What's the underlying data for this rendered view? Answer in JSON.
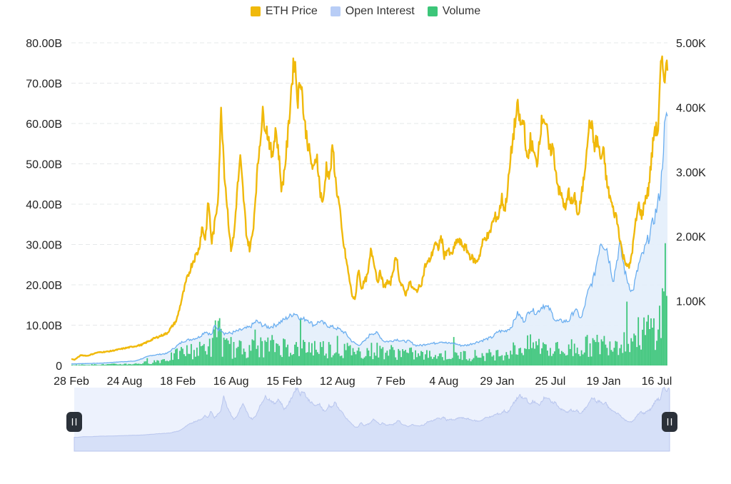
{
  "legend": [
    {
      "label": "ETH Price",
      "color": "#f0b90b"
    },
    {
      "label": "Open Interest",
      "color": "#b8cdf6"
    },
    {
      "label": "Volume",
      "color": "#3cc679"
    }
  ],
  "colors": {
    "price": "#f0b90b",
    "oi_line": "#6aaef0",
    "oi_fill": "#e3eefb",
    "volume": "#3cc679",
    "navigator_fill": "#d6e0f8",
    "navigator_bg": "#edf2fd",
    "handle": "#2b3139"
  },
  "chart_data": {
    "type": "line",
    "x_labels": [
      "28 Feb",
      "24 Aug",
      "18 Feb",
      "16 Aug",
      "15 Feb",
      "12 Aug",
      "7 Feb",
      "4 Aug",
      "29 Jan",
      "25 Jul",
      "19 Jan",
      "16 Jul"
    ],
    "left_axis": {
      "ticks": [
        "0",
        "10.00B",
        "20.00B",
        "30.00B",
        "40.00B",
        "50.00B",
        "60.00B",
        "70.00B",
        "80.00B"
      ],
      "ylim": [
        0,
        80
      ]
    },
    "right_axis": {
      "ticks": [
        "1.00K",
        "2.00K",
        "3.00K",
        "4.00K",
        "5.00K"
      ],
      "ylim": [
        0,
        5000
      ]
    },
    "grid": true,
    "legend_position": "top-center",
    "series": [
      {
        "name": "ETH Price",
        "axis": "right",
        "points": [
          [
            0,
            100
          ],
          [
            1,
            90
          ],
          [
            3,
            160
          ],
          [
            5,
            150
          ],
          [
            8,
            200
          ],
          [
            12,
            220
          ],
          [
            17,
            270
          ],
          [
            22,
            320
          ],
          [
            26,
            420
          ],
          [
            30,
            500
          ],
          [
            33,
            700
          ],
          [
            36,
            1300
          ],
          [
            38,
            1600
          ],
          [
            40,
            1800
          ],
          [
            41,
            2150
          ],
          [
            42,
            1950
          ],
          [
            43,
            2550
          ],
          [
            44,
            1900
          ],
          [
            45,
            2200
          ],
          [
            46,
            2600
          ],
          [
            47,
            4000
          ],
          [
            48,
            3000
          ],
          [
            49,
            2400
          ],
          [
            50,
            1800
          ],
          [
            51,
            2000
          ],
          [
            52,
            2700
          ],
          [
            53,
            3200
          ],
          [
            54,
            2600
          ],
          [
            55,
            2000
          ],
          [
            56,
            1800
          ],
          [
            57,
            2100
          ],
          [
            58,
            2800
          ],
          [
            59,
            3400
          ],
          [
            60,
            3900
          ],
          [
            62,
            3500
          ],
          [
            63,
            3200
          ],
          [
            64,
            3700
          ],
          [
            65,
            3300
          ],
          [
            66,
            2700
          ],
          [
            67,
            3100
          ],
          [
            68,
            3600
          ],
          [
            69,
            4300
          ],
          [
            70,
            4800
          ],
          [
            71,
            4100
          ],
          [
            72,
            4500
          ],
          [
            73,
            3800
          ],
          [
            74,
            3500
          ],
          [
            75,
            3200
          ],
          [
            76,
            3000
          ],
          [
            77,
            3300
          ],
          [
            78,
            2700
          ],
          [
            79,
            2500
          ],
          [
            80,
            3100
          ],
          [
            81,
            2900
          ],
          [
            82,
            3400
          ],
          [
            83,
            2800
          ],
          [
            84,
            2500
          ],
          [
            85,
            2000
          ],
          [
            86,
            1700
          ],
          [
            87,
            1400
          ],
          [
            88,
            1100
          ],
          [
            89,
            1000
          ],
          [
            90,
            1500
          ],
          [
            91,
            1200
          ],
          [
            92,
            1300
          ],
          [
            93,
            1400
          ],
          [
            94,
            1800
          ],
          [
            95,
            1600
          ],
          [
            96,
            1300
          ],
          [
            97,
            1450
          ],
          [
            98,
            1200
          ],
          [
            99,
            1300
          ],
          [
            100,
            1250
          ],
          [
            101,
            1500
          ],
          [
            102,
            1700
          ],
          [
            103,
            1300
          ],
          [
            104,
            1200
          ],
          [
            105,
            1100
          ],
          [
            106,
            1300
          ],
          [
            107,
            1200
          ],
          [
            108,
            1150
          ],
          [
            109,
            1200
          ],
          [
            110,
            1300
          ],
          [
            111,
            1550
          ],
          [
            112,
            1600
          ],
          [
            113,
            1700
          ],
          [
            114,
            1900
          ],
          [
            115,
            1800
          ],
          [
            116,
            2000
          ],
          [
            117,
            1700
          ],
          [
            118,
            1800
          ],
          [
            119,
            1700
          ],
          [
            120,
            1800
          ],
          [
            121,
            1950
          ],
          [
            122,
            1900
          ],
          [
            123,
            1850
          ],
          [
            124,
            1800
          ],
          [
            125,
            1700
          ],
          [
            126,
            1650
          ],
          [
            127,
            1600
          ],
          [
            128,
            1700
          ],
          [
            129,
            1900
          ],
          [
            130,
            2000
          ],
          [
            131,
            2000
          ],
          [
            132,
            2200
          ],
          [
            133,
            2300
          ],
          [
            134,
            2300
          ],
          [
            135,
            2600
          ],
          [
            136,
            2400
          ],
          [
            137,
            2800
          ],
          [
            138,
            3300
          ],
          [
            139,
            3700
          ],
          [
            140,
            4000
          ],
          [
            141,
            3700
          ],
          [
            142,
            3800
          ],
          [
            143,
            3100
          ],
          [
            144,
            3500
          ],
          [
            145,
            3300
          ],
          [
            146,
            3100
          ],
          [
            147,
            3600
          ],
          [
            148,
            3900
          ],
          [
            149,
            3700
          ],
          [
            150,
            3300
          ],
          [
            151,
            3400
          ],
          [
            152,
            3000
          ],
          [
            153,
            2700
          ],
          [
            154,
            2600
          ],
          [
            155,
            2400
          ],
          [
            156,
            2700
          ],
          [
            157,
            2500
          ],
          [
            158,
            2600
          ],
          [
            159,
            2300
          ],
          [
            160,
            2600
          ],
          [
            161,
            3000
          ],
          [
            162,
            3600
          ],
          [
            163,
            3800
          ],
          [
            164,
            3400
          ],
          [
            165,
            3500
          ],
          [
            166,
            3200
          ],
          [
            167,
            3300
          ],
          [
            168,
            2800
          ],
          [
            169,
            2600
          ],
          [
            170,
            2400
          ],
          [
            171,
            2300
          ],
          [
            172,
            2000
          ],
          [
            173,
            1700
          ],
          [
            174,
            1600
          ],
          [
            175,
            1500
          ],
          [
            176,
            1800
          ],
          [
            177,
            2200
          ],
          [
            178,
            2500
          ],
          [
            179,
            2300
          ],
          [
            180,
            2600
          ],
          [
            181,
            2700
          ],
          [
            182,
            3200
          ],
          [
            183,
            3700
          ],
          [
            184,
            3600
          ],
          [
            185,
            4700
          ],
          [
            186,
            4500
          ],
          [
            187,
            4650
          ]
        ]
      },
      {
        "name": "Open Interest",
        "axis": "left",
        "points": [
          [
            0,
            0.4
          ],
          [
            5,
            0.5
          ],
          [
            10,
            0.6
          ],
          [
            15,
            0.9
          ],
          [
            20,
            1.1
          ],
          [
            25,
            2.5
          ],
          [
            30,
            3
          ],
          [
            35,
            6
          ],
          [
            40,
            7
          ],
          [
            42,
            8.5
          ],
          [
            44,
            7.5
          ],
          [
            45,
            10
          ],
          [
            46,
            9
          ],
          [
            47,
            9
          ],
          [
            48,
            8
          ],
          [
            50,
            8
          ],
          [
            52,
            8.5
          ],
          [
            54,
            9
          ],
          [
            56,
            9.5
          ],
          [
            58,
            11
          ],
          [
            60,
            10
          ],
          [
            62,
            9.5
          ],
          [
            64,
            10
          ],
          [
            66,
            11
          ],
          [
            68,
            12
          ],
          [
            70,
            13
          ],
          [
            71,
            12.5
          ],
          [
            72,
            11.5
          ],
          [
            74,
            11.5
          ],
          [
            76,
            10
          ],
          [
            78,
            11
          ],
          [
            80,
            10
          ],
          [
            82,
            9.5
          ],
          [
            84,
            9
          ],
          [
            86,
            8
          ],
          [
            88,
            6
          ],
          [
            90,
            5
          ],
          [
            92,
            6
          ],
          [
            94,
            8
          ],
          [
            96,
            8
          ],
          [
            98,
            6
          ],
          [
            100,
            6
          ],
          [
            102,
            6.5
          ],
          [
            104,
            6
          ],
          [
            106,
            6
          ],
          [
            108,
            5
          ],
          [
            110,
            5
          ],
          [
            112,
            5.5
          ],
          [
            114,
            5.5
          ],
          [
            116,
            6
          ],
          [
            118,
            5.5
          ],
          [
            120,
            5.5
          ],
          [
            122,
            5
          ],
          [
            124,
            5
          ],
          [
            126,
            5.5
          ],
          [
            128,
            6
          ],
          [
            130,
            6.5
          ],
          [
            132,
            7
          ],
          [
            134,
            8.5
          ],
          [
            136,
            8.5
          ],
          [
            138,
            9.5
          ],
          [
            140,
            13
          ],
          [
            142,
            11
          ],
          [
            144,
            14
          ],
          [
            146,
            13
          ],
          [
            148,
            15
          ],
          [
            150,
            14
          ],
          [
            152,
            11
          ],
          [
            154,
            11
          ],
          [
            156,
            11
          ],
          [
            158,
            14
          ],
          [
            160,
            11.5
          ],
          [
            162,
            18
          ],
          [
            164,
            22
          ],
          [
            166,
            31
          ],
          [
            168,
            29
          ],
          [
            170,
            21
          ],
          [
            172,
            30
          ],
          [
            174,
            22
          ],
          [
            176,
            18
          ],
          [
            178,
            25
          ],
          [
            180,
            29
          ],
          [
            182,
            34
          ],
          [
            184,
            40
          ],
          [
            185,
            45
          ],
          [
            186,
            58
          ],
          [
            187,
            62
          ]
        ]
      },
      {
        "name": "Volume",
        "axis": "left",
        "points": [
          [
            0,
            0.2
          ],
          [
            10,
            0.3
          ],
          [
            20,
            0.5
          ],
          [
            25,
            1
          ],
          [
            30,
            2
          ],
          [
            35,
            4
          ],
          [
            40,
            4.5
          ],
          [
            42,
            6
          ],
          [
            44,
            5
          ],
          [
            46,
            15
          ],
          [
            47,
            6
          ],
          [
            50,
            4.5
          ],
          [
            55,
            5
          ],
          [
            60,
            5.5
          ],
          [
            65,
            6
          ],
          [
            70,
            5
          ],
          [
            75,
            5.5
          ],
          [
            80,
            5
          ],
          [
            85,
            4.5
          ],
          [
            90,
            4
          ],
          [
            95,
            4.5
          ],
          [
            100,
            4
          ],
          [
            105,
            3.5
          ],
          [
            110,
            3
          ],
          [
            115,
            3
          ],
          [
            120,
            3
          ],
          [
            125,
            3
          ],
          [
            130,
            3
          ],
          [
            135,
            3.5
          ],
          [
            140,
            5
          ],
          [
            145,
            6
          ],
          [
            150,
            5
          ],
          [
            155,
            4
          ],
          [
            160,
            5.5
          ],
          [
            165,
            6
          ],
          [
            170,
            7
          ],
          [
            175,
            8
          ],
          [
            180,
            10
          ],
          [
            183,
            11
          ],
          [
            185,
            14
          ],
          [
            186,
            27
          ],
          [
            187,
            26
          ]
        ]
      }
    ]
  }
}
